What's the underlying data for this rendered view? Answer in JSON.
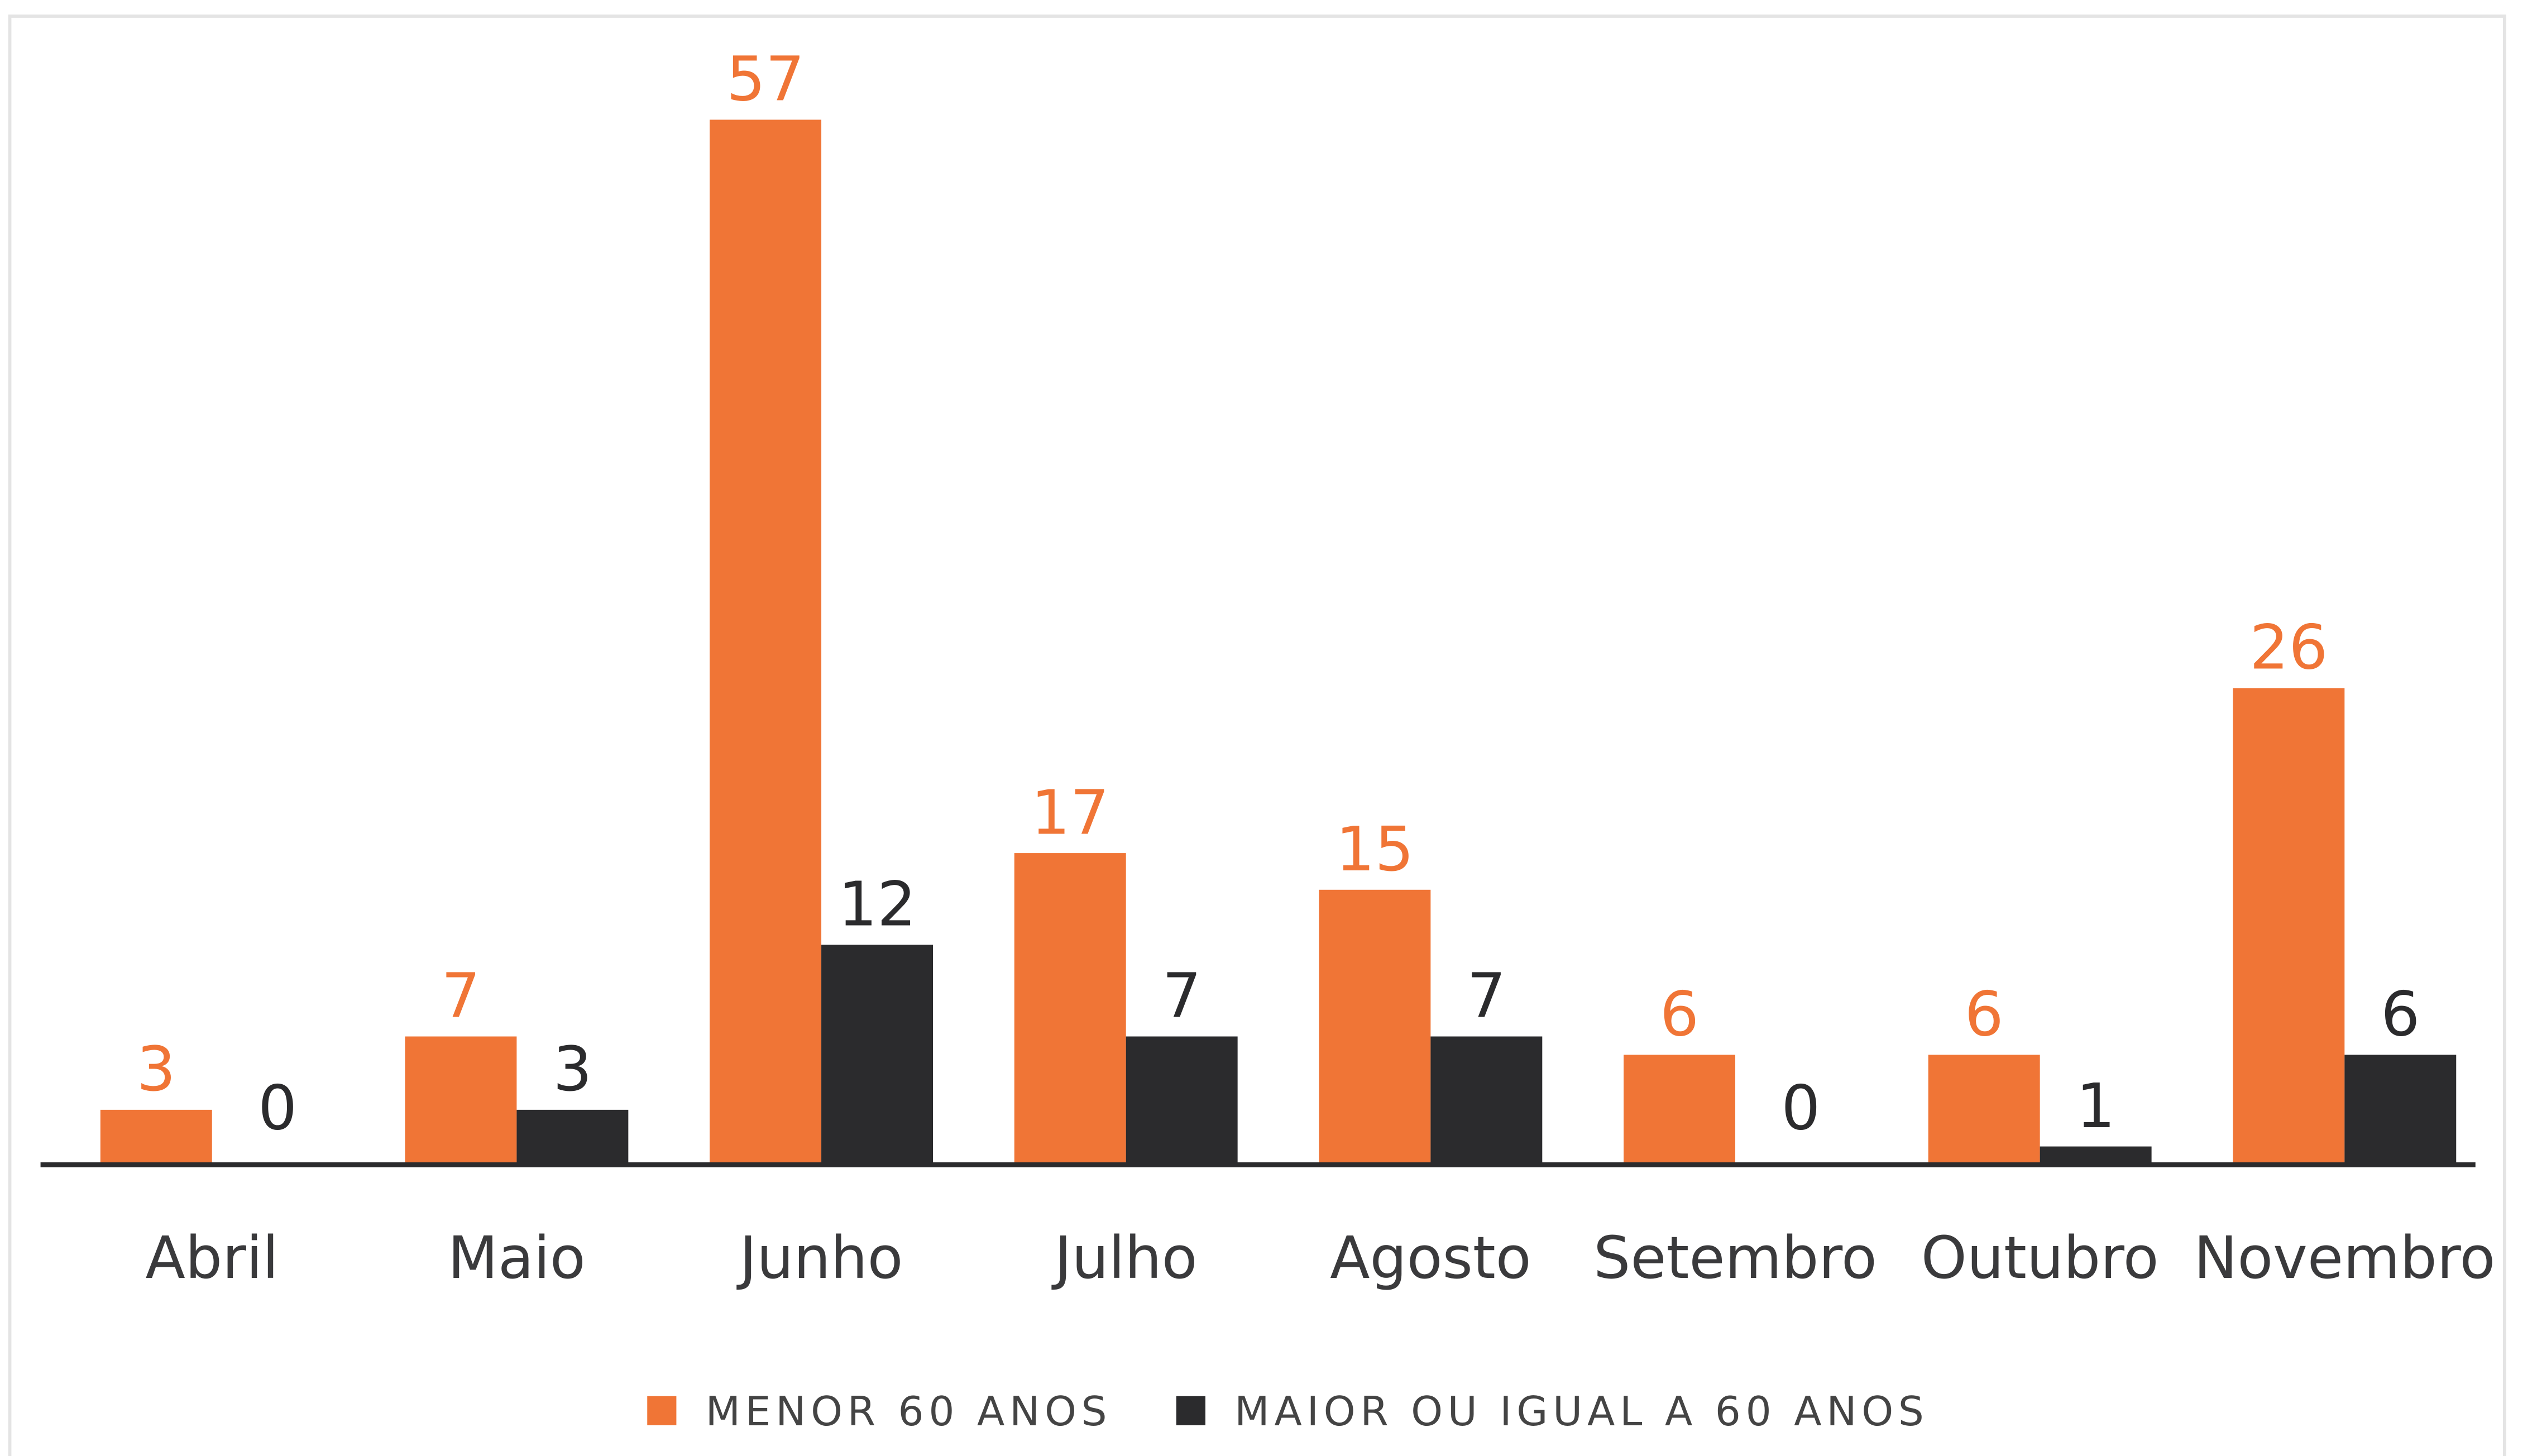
{
  "chart_data": {
    "type": "bar",
    "categories": [
      "Abril",
      "Maio",
      "Junho",
      "Julho",
      "Agosto",
      "Setembro",
      "Outubro",
      "Novembro"
    ],
    "series": [
      {
        "name": "MENOR 60 ANOS",
        "color": "#f07536",
        "values": [
          3,
          7,
          57,
          17,
          15,
          6,
          6,
          26
        ]
      },
      {
        "name": "MAIOR OU IGUAL A 60 ANOS",
        "color": "#2b2b2d",
        "values": [
          0,
          3,
          12,
          7,
          7,
          0,
          1,
          6
        ]
      }
    ],
    "ylim": [
      0,
      60
    ]
  }
}
